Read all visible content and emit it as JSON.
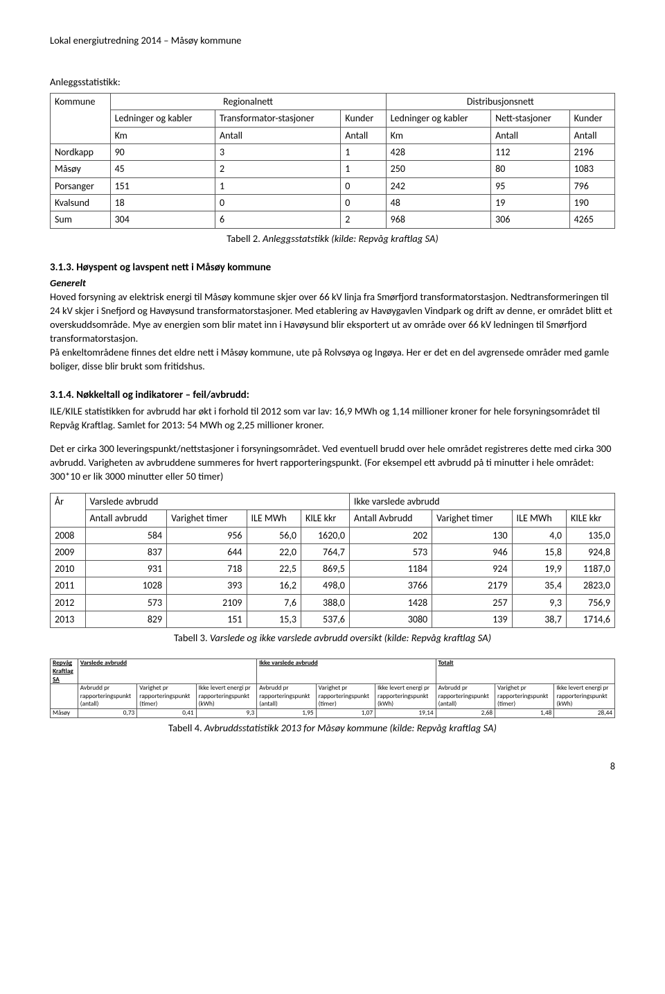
{
  "header": "Lokal energiutredning 2014 – Måsøy kommune",
  "anlegg_label": "Anleggsstatistikk:",
  "table1": {
    "group1": "Regionalnett",
    "group2": "Distribusjonsnett",
    "col_kommune": "Kommune",
    "cols_r": [
      "Ledninger og kabler",
      "Transformator-stasjoner",
      "Kunder"
    ],
    "cols_d": [
      "Ledninger og kabler",
      "Nett-stasjoner",
      "Kunder"
    ],
    "units": [
      "Km",
      "Antall",
      "Antall",
      "Km",
      "Antall",
      "Antall"
    ],
    "rows": [
      [
        "Nordkapp",
        "90",
        "3",
        "1",
        "428",
        "112",
        "2196"
      ],
      [
        "Måsøy",
        "45",
        "2",
        "1",
        "250",
        "80",
        "1083"
      ],
      [
        "Porsanger",
        "151",
        "1",
        "0",
        "242",
        "95",
        "796"
      ],
      [
        "Kvalsund",
        "18",
        "0",
        "0",
        "48",
        "19",
        "190"
      ],
      [
        "Sum",
        "304",
        "6",
        "2",
        "968",
        "306",
        "4265"
      ]
    ]
  },
  "caption1_lead": "Tabell 2.",
  "caption1_rest": " Anleggsstatstikk (kilde: Repvåg kraftlag SA)",
  "sec313_num": "3.1.3.",
  "sec313_title": " Høyspent og lavspent nett i Måsøy kommune",
  "sec313_sub": "Generelt",
  "sec313_p1": "Hoved forsyning av elektrisk energi til Måsøy kommune skjer over 66 kV linja fra Smørfjord transformatorstasjon. Nedtransformeringen til 24 kV skjer i Snefjord og Havøysund transformatorstasjoner. Med etablering av Havøygavlen Vindpark og drift av denne, er området blitt et overskuddsområde. Mye av energien som blir matet inn i Havøysund blir eksportert ut av område over 66 kV ledningen til Smørfjord transformatorstasjon.",
  "sec313_p2": "På enkeltområdene finnes det eldre nett i Måsøy kommune, ute på Rolvsøya og Ingøya. Her er det en del avgrensede områder med gamle boliger, disse blir brukt som fritidshus.",
  "sec314_num": "3.1.4.",
  "sec314_title": " Nøkkeltall og indikatorer – feil/avbrudd:",
  "sec314_p1": "ILE/KILE statistikken for avbrudd har økt i forhold til 2012 som var lav: 16,9 MWh og 1,14 millioner kroner for hele forsyningsområdet til Repvåg Kraftlag. Samlet for 2013: 54 MWh og 2,25 millioner kroner.",
  "sec314_p2": "Det er cirka 300 leveringspunkt/nettstasjoner i forsyningsområdet. Ved eventuell brudd over hele området registreres dette med cirka 300 avbrudd. Varigheten av avbruddene summeres for hvert rapporteringspunkt. (For eksempel ett avbrudd på ti minutter i hele området: 300*10 er lik 3000 minutter eller 50 timer)",
  "table3": {
    "group1": "Varslede avbrudd",
    "group2": "Ikke varslede avbrudd",
    "col_year": "År",
    "cols": [
      "Antall avbrudd",
      "Varighet timer",
      "ILE MWh",
      "KILE kkr",
      "Antall Avbrudd",
      "Varighet timer",
      "ILE MWh",
      "KILE kkr"
    ],
    "rows": [
      [
        "2008",
        "584",
        "956",
        "56,0",
        "1620,0",
        "202",
        "130",
        "4,0",
        "135,0"
      ],
      [
        "2009",
        "837",
        "644",
        "22,0",
        "764,7",
        "573",
        "946",
        "15,8",
        "924,8"
      ],
      [
        "2010",
        "931",
        "718",
        "22,5",
        "869,5",
        "1184",
        "924",
        "19,9",
        "1187,0"
      ],
      [
        "2011",
        "1028",
        "393",
        "16,2",
        "498,0",
        "3766",
        "2179",
        "35,4",
        "2823,0"
      ],
      [
        "2012",
        "573",
        "2109",
        "7,6",
        "388,0",
        "1428",
        "257",
        "9,3",
        "756,9"
      ],
      [
        "2013",
        "829",
        "151",
        "15,3",
        "537,6",
        "3080",
        "139",
        "38,7",
        "1714,6"
      ]
    ]
  },
  "caption3_lead": "Tabell 3.",
  "caption3_rest": " Varslede og ikke varslede avbrudd oversikt (kilde: Repvåg kraftlag SA)",
  "table4": {
    "corp": "Repvåg Kraftlag SA",
    "g1": "Varslede avbrudd",
    "g2": "Ikke varslede avbrudd",
    "g3": "Totalt",
    "cols": [
      "Avbrudd pr rapporteringspunkt (antall)",
      "Varighet pr rapporteringspunkt (timer)",
      "Ikke levert energi pr rapporteringspunkt (kWh)",
      "Avbrudd pr rapporteringspunkt (antall)",
      "Varighet pr rapporteringspunkt (timer)",
      "Ikke levert energi pr rapporteringspunkt (kWh)",
      "Avbrudd pr rapporteringspunkt (antall)",
      "Varighet pr rapporteringspunkt (timer)",
      "Ikke levert energi pr rapporteringspunkt (kWh)"
    ],
    "row_label": "Måsøy",
    "row": [
      "0,73",
      "0,41",
      "9,3",
      "1,95",
      "1,07",
      "19,14",
      "2,68",
      "1,48",
      "28,44"
    ]
  },
  "caption4_lead": "Tabell 4.",
  "caption4_rest": " Avbruddsstatistikk 2013 for Måsøy kommune (kilde: Repvåg kraftlag SA)",
  "page_num": "8"
}
